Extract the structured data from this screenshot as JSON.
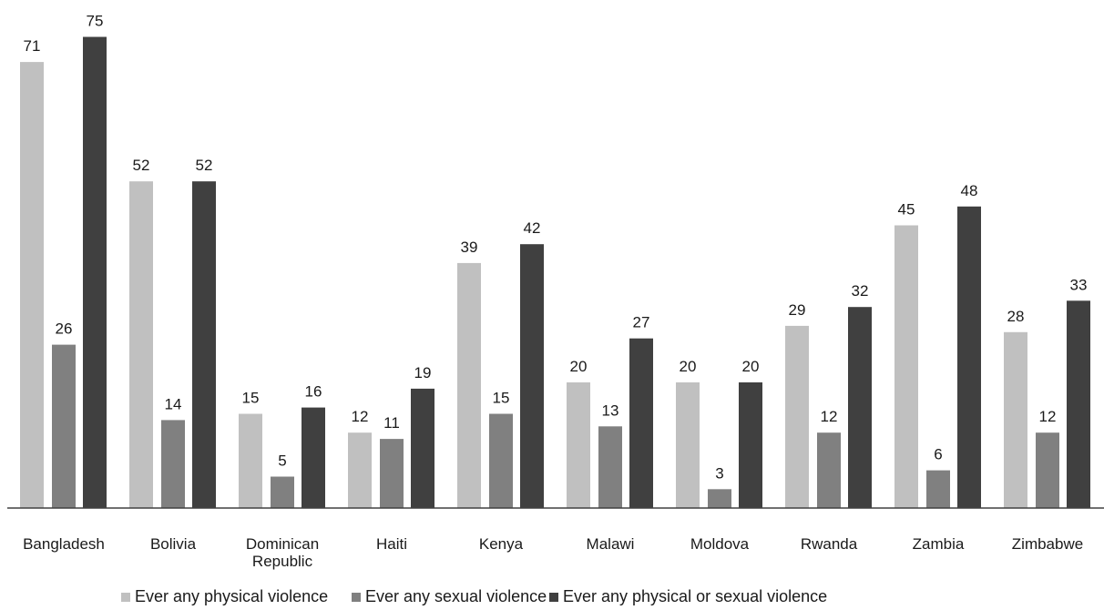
{
  "chart_data": {
    "type": "bar",
    "categories": [
      "Bangladesh",
      "Bolivia",
      "Dominican Republic",
      "Haiti",
      "Kenya",
      "Malawi",
      "Moldova",
      "Rwanda",
      "Zambia",
      "Zimbabwe"
    ],
    "category_lines": [
      [
        "Bangladesh"
      ],
      [
        "Bolivia"
      ],
      [
        "Dominican",
        "Republic"
      ],
      [
        "Haiti"
      ],
      [
        "Kenya"
      ],
      [
        "Malawi"
      ],
      [
        "Moldova"
      ],
      [
        "Rwanda"
      ],
      [
        "Zambia"
      ],
      [
        "Zimbabwe"
      ]
    ],
    "series": [
      {
        "name": "Ever any physical violence",
        "color": "#c0c0c0",
        "values": [
          71,
          52,
          15,
          12,
          39,
          20,
          20,
          29,
          45,
          28
        ]
      },
      {
        "name": "Ever any sexual violence",
        "color": "#808080",
        "values": [
          26,
          14,
          5,
          11,
          15,
          13,
          3,
          12,
          6,
          12
        ]
      },
      {
        "name": "Ever any physical or sexual violence",
        "color": "#404040",
        "values": [
          75,
          52,
          16,
          19,
          42,
          27,
          20,
          32,
          48,
          33
        ]
      }
    ],
    "title": "",
    "xlabel": "",
    "ylabel": "",
    "ylim": [
      0,
      80
    ],
    "grid": false,
    "legend_position": "bottom"
  }
}
